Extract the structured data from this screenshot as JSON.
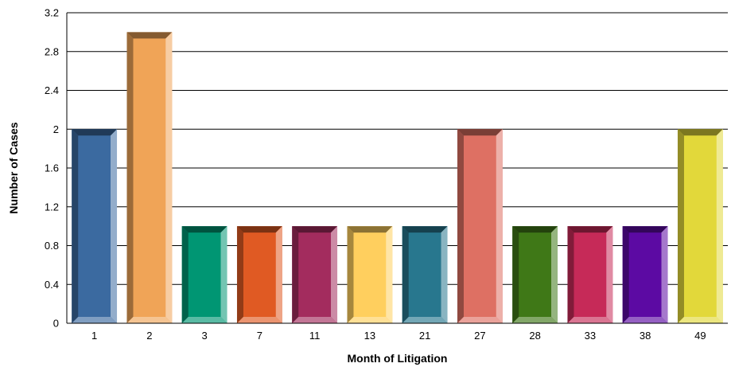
{
  "chart_data": {
    "type": "bar",
    "categories": [
      "1",
      "2",
      "3",
      "7",
      "11",
      "13",
      "21",
      "27",
      "28",
      "33",
      "38",
      "49"
    ],
    "values": [
      2,
      3,
      1,
      1,
      1,
      1,
      1,
      2,
      1,
      1,
      1,
      2
    ],
    "colors": [
      "#3b6aa0",
      "#f0a457",
      "#009673",
      "#e05a23",
      "#a32c5e",
      "#ffcf5e",
      "#28778e",
      "#de7063",
      "#3f7817",
      "#c62a58",
      "#5c0aa3",
      "#e2d83a"
    ],
    "title": "",
    "xlabel": "Month of Litigation",
    "ylabel": "Number of Cases",
    "ylim": [
      0,
      3.2
    ],
    "yticks": [
      "0",
      "0.4",
      "0.8",
      "1.2",
      "1.6",
      "2",
      "2.4",
      "2.8",
      "3.2"
    ],
    "grid": true,
    "legend": "none"
  }
}
